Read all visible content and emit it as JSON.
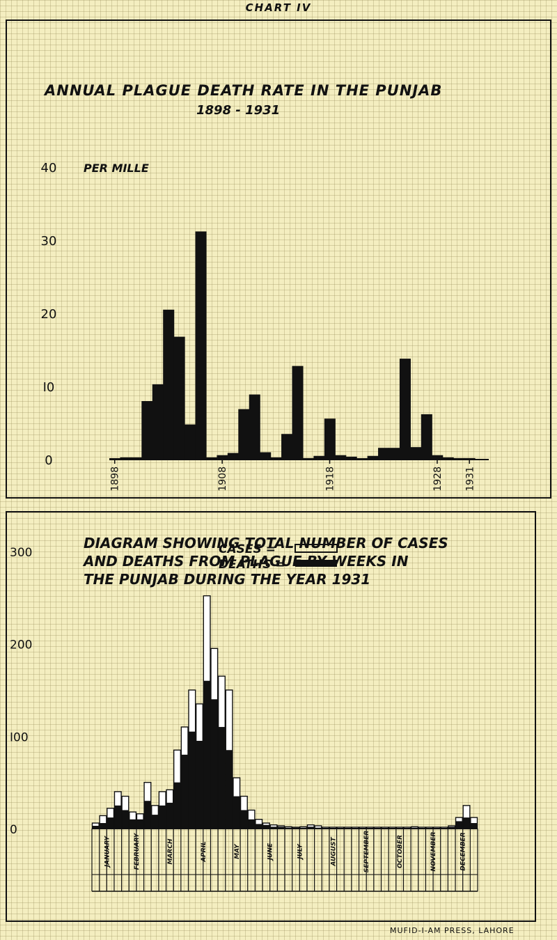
{
  "header": "CHART IV",
  "credit": "MUFID-I-AM PRESS, LAHORE",
  "colors": {
    "paper": "#f4eec0",
    "grid": "#968c5a",
    "ink": "#111111",
    "bar_fill": "#111111",
    "case_fill": "#ffffff"
  },
  "chart_data": [
    {
      "type": "bar",
      "title": "ANNUAL PLAGUE DEATH RATE IN THE PUNJAB",
      "subtitle": "1898 - 1931",
      "ylabel": "PER MILLE",
      "ylim": [
        0,
        40
      ],
      "y_ticks": [
        "0",
        "I0",
        "20",
        "30",
        "40"
      ],
      "x_tick_labels": [
        "1898",
        "1908",
        "1918",
        "1928",
        "1931"
      ],
      "x_ticks": [
        1898,
        1908,
        1918,
        1928,
        1931
      ],
      "categories": [
        1898,
        1899,
        1900,
        1901,
        1902,
        1903,
        1904,
        1905,
        1906,
        1907,
        1908,
        1909,
        1910,
        1911,
        1912,
        1913,
        1914,
        1915,
        1916,
        1917,
        1918,
        1919,
        1920,
        1921,
        1922,
        1923,
        1924,
        1925,
        1926,
        1927,
        1928,
        1929,
        1930,
        1931
      ],
      "values": [
        0.0,
        0.3,
        0.3,
        8.0,
        10.3,
        20.5,
        16.8,
        4.8,
        31.2,
        0.3,
        0.6,
        0.9,
        6.9,
        8.9,
        1.0,
        0.3,
        3.5,
        12.8,
        0.2,
        0.5,
        5.6,
        0.6,
        0.4,
        0.1,
        0.5,
        1.6,
        1.6,
        13.8,
        1.7,
        6.2,
        0.6,
        0.3,
        0.2,
        0.2
      ],
      "grid": true
    },
    {
      "type": "bar",
      "title_lines": [
        "DIAGRAM SHOWING TOTAL NUMBER OF CASES",
        "AND DEATHS FROM PLAGUE BY WEEKS IN",
        "THE PUNJAB DURING THE YEAR 1931"
      ],
      "ylim": [
        0,
        300
      ],
      "y_ticks": [
        "0",
        "I00",
        "200",
        "300"
      ],
      "legend": [
        {
          "label": "CASES =",
          "style": "outline"
        },
        {
          "label": "DEATHS =",
          "style": "filled"
        }
      ],
      "legend_position": "top-center",
      "months": [
        "JANUARY",
        "FEBRUARY",
        "MARCH",
        "APRIL",
        "MAY",
        "JUNE",
        "JULY",
        "AUGUST",
        "SEPTEMBER",
        "OCTOBER",
        "NOVEMBER",
        "DECEMBER"
      ],
      "series": [
        {
          "name": "CASES",
          "values": [
            6,
            14,
            22,
            40,
            35,
            18,
            16,
            50,
            25,
            40,
            42,
            85,
            110,
            150,
            135,
            252,
            195,
            165,
            150,
            55,
            35,
            20,
            10,
            6,
            4,
            3,
            2,
            1,
            2,
            4,
            3,
            1,
            1,
            1,
            1,
            1,
            1,
            1,
            1,
            1,
            1,
            1,
            1,
            2,
            1,
            1,
            1,
            1,
            3,
            12,
            25,
            12
          ]
        },
        {
          "name": "DEATHS",
          "values": [
            3,
            6,
            12,
            25,
            20,
            10,
            10,
            30,
            15,
            25,
            28,
            50,
            80,
            105,
            95,
            160,
            140,
            110,
            85,
            35,
            20,
            10,
            5,
            4,
            2,
            2,
            1,
            1,
            1,
            2,
            1,
            0,
            0,
            0,
            0,
            0,
            0,
            0,
            0,
            0,
            0,
            0,
            0,
            1,
            0,
            0,
            0,
            0,
            2,
            8,
            12,
            6
          ]
        }
      ],
      "grid": true
    }
  ]
}
